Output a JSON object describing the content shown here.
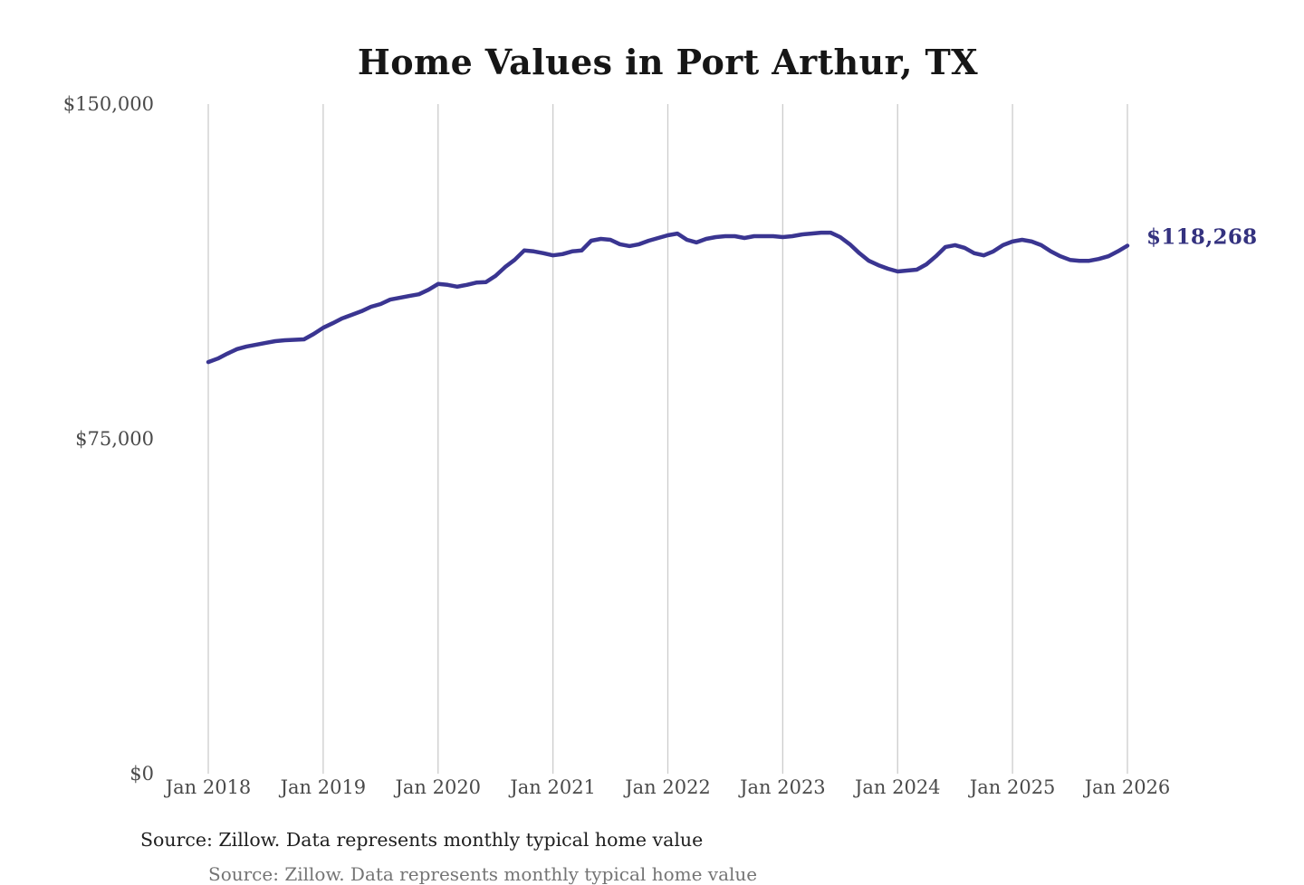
{
  "chart_data": {
    "type": "line",
    "title": "Home Values in Port Arthur, TX",
    "source_note": "Source: Zillow. Data represents monthly typical home value",
    "xlabel": "",
    "ylabel": "",
    "ylim": [
      0,
      150000
    ],
    "grid": "vertical-only",
    "legend": "none",
    "y_ticks": [
      {
        "label": "$150,000",
        "value": 150000
      },
      {
        "label": "$75,000",
        "value": 75000
      },
      {
        "label": "$0",
        "value": 0
      }
    ],
    "x_ticks": [
      {
        "label": "Jan 2018",
        "month_index": 0
      },
      {
        "label": "Jan 2019",
        "month_index": 12
      },
      {
        "label": "Jan 2020",
        "month_index": 24
      },
      {
        "label": "Jan 2021",
        "month_index": 36
      },
      {
        "label": "Jan 2022",
        "month_index": 48
      },
      {
        "label": "Jan 2023",
        "month_index": 60
      },
      {
        "label": "Jan 2024",
        "month_index": 72
      },
      {
        "label": "Jan 2025",
        "month_index": 84
      },
      {
        "label": "Jan 2026",
        "month_index": 96
      }
    ],
    "x_range_months": 96,
    "end_annotation": {
      "text": "$118,268",
      "value": 118268
    },
    "colors": {
      "line": "#3a3591",
      "end_label": "#34327f",
      "gridline": "#cccccc",
      "axis_text": "#4a4a4a",
      "title_text": "#161616",
      "source_text": "#1f1f1f",
      "background": "#ffffff"
    },
    "series": [
      {
        "name": "Monthly typical home value",
        "start": "Jan 2018",
        "interval": "monthly",
        "values": [
          92200,
          93000,
          94100,
          95100,
          95700,
          96100,
          96500,
          96900,
          97100,
          97200,
          97300,
          98500,
          99900,
          100900,
          102000,
          102800,
          103600,
          104600,
          105200,
          106200,
          106600,
          107000,
          107400,
          108400,
          109700,
          109500,
          109100,
          109500,
          110000,
          110100,
          111500,
          113500,
          115100,
          117200,
          117000,
          116600,
          116100,
          116400,
          117000,
          117200,
          119400,
          119800,
          119600,
          118600,
          118200,
          118600,
          119400,
          120000,
          120600,
          121000,
          119600,
          119000,
          119800,
          120200,
          120400,
          120400,
          120000,
          120400,
          120400,
          120400,
          120200,
          120400,
          120800,
          121000,
          121200,
          121200,
          120200,
          118600,
          116600,
          114900,
          113900,
          113100,
          112500,
          112700,
          112900,
          114100,
          115900,
          118000,
          118400,
          117800,
          116600,
          116100,
          117000,
          118400,
          119200,
          119600,
          119200,
          118400,
          117000,
          115900,
          115100,
          114900,
          114900,
          115300,
          115900,
          117000,
          118268
        ]
      }
    ]
  },
  "footer": {
    "cropped_text": "Source: Zillow. Data represents monthly typical home value"
  }
}
